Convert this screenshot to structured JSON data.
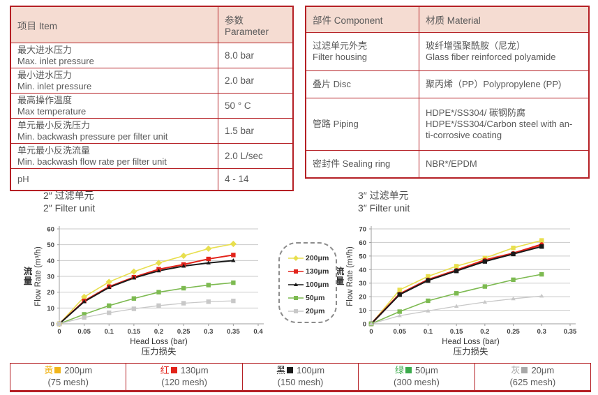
{
  "page": {
    "accent_red": "#b52025",
    "header_bg": "#f5dcd2",
    "text_color": "#595959"
  },
  "left_table": {
    "headers": [
      "项目 Item",
      "参数 Parameter"
    ],
    "rows": [
      {
        "cn": "最大进水压力",
        "en": "Max. inlet pressure",
        "value": "8.0 bar"
      },
      {
        "cn": "最小进水压力",
        "en": "Min. inlet pressure",
        "value": "2.0 bar"
      },
      {
        "cn": "最高操作温度",
        "en": "Max temperature",
        "value": "50 ° C"
      },
      {
        "cn": "单元最小反洗压力",
        "en": "Min. backwash pressure per filter unit",
        "value": "1.5 bar"
      },
      {
        "cn": "单元最小反洗流量",
        "en": "Min. backwash flow rate per filter unit",
        "value": "2.0 L/sec"
      },
      {
        "cn": "pH",
        "value": "4 - 14"
      }
    ]
  },
  "right_table": {
    "headers": [
      "部件 Component",
      "材质 Material"
    ],
    "rows": [
      {
        "component_line1": "过滤单元外壳",
        "component_line2": "Filter housing",
        "material_line1": "玻纤增强聚酰胺（尼龙）",
        "material_line2": "Glass fiber reinforced polyamide"
      },
      {
        "component_line1": "叠片 Disc",
        "material_line1": "聚丙烯（PP）Polypropylene (PP)"
      },
      {
        "component_line1": "管路 Piping",
        "material_line1": "HDPE*/SS304/ 碳钢防腐",
        "material_line2": "HDPE*/SS304/Carbon steel with an-",
        "material_line3": "ti-corrosive coating"
      },
      {
        "component_line1": "密封件 Sealing ring",
        "material_line1": "NBR*/EPDM"
      }
    ]
  },
  "chart_data": [
    {
      "type": "line",
      "title_cn": "2″ 过滤单元",
      "title_en": "2″ Filter unit",
      "xlabel_en": "Head Loss (bar)",
      "xlabel_cn": "压力损失",
      "ylabel_cn": "流量",
      "ylabel_en": "Flow Rate (m³/h)",
      "xlim": [
        0,
        0.4
      ],
      "ylim": [
        0,
        60
      ],
      "x_tick_step": 0.05,
      "y_tick_step": 10,
      "grid": "horizontal",
      "x": [
        0,
        0.05,
        0.1,
        0.15,
        0.2,
        0.25,
        0.3,
        0.35
      ],
      "series": [
        {
          "name": "200μm",
          "color": "#e8df4e",
          "marker": "diamond",
          "lw": 1.6,
          "values": [
            0,
            17,
            26.5,
            33,
            38.5,
            43,
            47.5,
            50.5
          ]
        },
        {
          "name": "130μm",
          "color": "#e2231a",
          "marker": "square",
          "lw": 2.0,
          "values": [
            0,
            14.5,
            23.5,
            29.5,
            34.5,
            37.5,
            41,
            43.5
          ]
        },
        {
          "name": "100μm",
          "color": "#1a1a1a",
          "marker": "triangle",
          "lw": 2.0,
          "values": [
            0,
            14,
            23,
            29,
            33.5,
            36.5,
            38.5,
            40
          ]
        },
        {
          "name": "50μm",
          "color": "#7dba51",
          "marker": "square",
          "lw": 1.6,
          "values": [
            0,
            6,
            11.5,
            16,
            20,
            22.5,
            24.5,
            26
          ]
        },
        {
          "name": "20μm",
          "color": "#c8c8c8",
          "marker": "square",
          "lw": 1.3,
          "values": [
            0,
            4,
            7,
            9.5,
            11.5,
            13,
            14,
            14.5
          ]
        }
      ]
    },
    {
      "type": "line",
      "title_cn": "3″ 过滤单元",
      "title_en": "3″ Filter unit",
      "xlabel_en": "Head Loss (bar)",
      "xlabel_cn": "压力损失",
      "ylabel_cn": "流量",
      "ylabel_en": "Flow Rate (m³/h)",
      "xlim": [
        0,
        0.35
      ],
      "ylim": [
        0,
        70
      ],
      "x_tick_step": 0.05,
      "y_tick_step": 10,
      "grid": "horizontal",
      "x": [
        0,
        0.05,
        0.1,
        0.15,
        0.2,
        0.25,
        0.3
      ],
      "series": [
        {
          "name": "200μm",
          "color": "#e8df4e",
          "marker": "square",
          "lw": 1.6,
          "values": [
            0,
            25,
            35,
            42.5,
            48.5,
            56,
            61.5
          ]
        },
        {
          "name": "130μm",
          "color": "#e2231a",
          "marker": "circle",
          "lw": 2.6,
          "values": [
            0,
            22,
            32.5,
            39.5,
            47,
            52,
            58.5
          ]
        },
        {
          "name": "100μm",
          "color": "#1a1a1a",
          "marker": "square",
          "lw": 2.0,
          "values": [
            0,
            21.5,
            32,
            39,
            46,
            51.5,
            57
          ]
        },
        {
          "name": "50μm",
          "color": "#7dba51",
          "marker": "square",
          "lw": 1.6,
          "values": [
            0,
            9,
            17,
            22.5,
            27.5,
            32.5,
            36.5
          ]
        },
        {
          "name": "20μm",
          "color": "#c8c8c8",
          "marker": "triangle",
          "lw": 1.3,
          "values": [
            0,
            6,
            9.5,
            13,
            16,
            18.5,
            20.5
          ]
        }
      ]
    }
  ],
  "legend_box": {
    "entries": [
      {
        "label": "200μm",
        "color": "#e8df4e",
        "marker": "diamond"
      },
      {
        "label": "130μm",
        "color": "#e2231a",
        "marker": "square"
      },
      {
        "label": "100μm",
        "color": "#1a1a1a",
        "marker": "triangle"
      },
      {
        "label": "50μm",
        "color": "#7dba51",
        "marker": "square"
      },
      {
        "label": "20μm",
        "color": "#c8c8c8",
        "marker": "square"
      }
    ]
  },
  "bottom_bar": {
    "cells": [
      {
        "color_cn": "黄",
        "color": "#f0b41a",
        "size": "200μm",
        "mesh": "(75 mesh)"
      },
      {
        "color_cn": "红",
        "color": "#e2231a",
        "size": "130μm",
        "mesh": "(120 mesh)"
      },
      {
        "color_cn": "黑",
        "color": "#1a1a1a",
        "size": "100μm",
        "mesh": "(150 mesh)"
      },
      {
        "color_cn": "绿",
        "color": "#3baa4b",
        "size": "50μm",
        "mesh": "(300 mesh)"
      },
      {
        "color_cn": "灰",
        "color": "#a8a8a8",
        "size": "20μm",
        "mesh": "(625 mesh)"
      }
    ]
  }
}
